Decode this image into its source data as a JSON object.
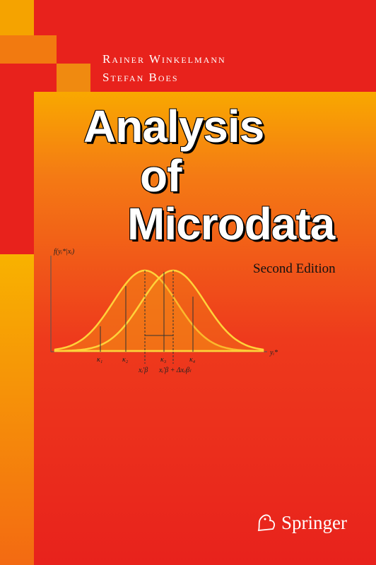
{
  "cover": {
    "authors": [
      "Rainer Winkelmann",
      "Stefan Boes"
    ],
    "title_lines": [
      "Analysis",
      "of",
      "Microdata"
    ],
    "edition": "Second Edition",
    "figure": {
      "y_axis_label": "f(yᵢ*|xᵢ)",
      "x_axis_label": "yᵢ*",
      "thresholds": [
        "κ₁",
        "κ₂",
        "κ₃",
        "κ₄"
      ],
      "means": [
        "xᵢ′β",
        "xᵢ′β + Δxᵢₗβₗ"
      ]
    },
    "publisher": "Springer"
  }
}
